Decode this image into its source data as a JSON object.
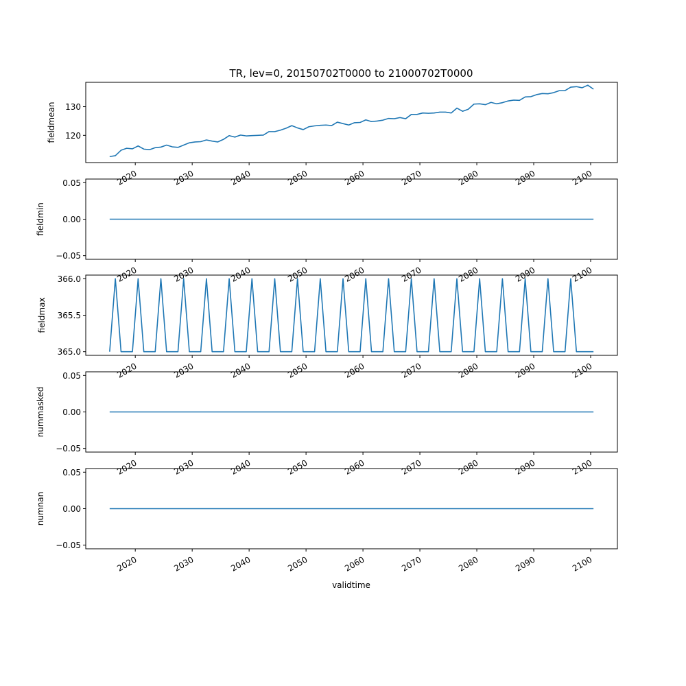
{
  "figure": {
    "title": "TR, lev=0, 20150702T0000 to 21000702T0000",
    "xlabel": "validtime",
    "line_color": "#1f77b4"
  },
  "chart_data": [
    {
      "type": "line",
      "ylabel": "fieldmean",
      "x": [
        2015.5,
        2016.5,
        2017.5,
        2018.5,
        2019.5,
        2020.5,
        2021.5,
        2022.5,
        2023.5,
        2024.5,
        2025.5,
        2026.5,
        2027.5,
        2028.5,
        2029.5,
        2030.5,
        2031.5,
        2032.5,
        2033.5,
        2034.5,
        2035.5,
        2036.5,
        2037.5,
        2038.5,
        2039.5,
        2040.5,
        2041.5,
        2042.5,
        2043.5,
        2044.5,
        2045.5,
        2046.5,
        2047.5,
        2048.5,
        2049.5,
        2050.5,
        2051.5,
        2052.5,
        2053.5,
        2054.5,
        2055.5,
        2056.5,
        2057.5,
        2058.5,
        2059.5,
        2060.5,
        2061.5,
        2062.5,
        2063.5,
        2064.5,
        2065.5,
        2066.5,
        2067.5,
        2068.5,
        2069.5,
        2070.5,
        2071.5,
        2072.5,
        2073.5,
        2074.5,
        2075.5,
        2076.5,
        2077.5,
        2078.5,
        2079.5,
        2080.5,
        2081.5,
        2082.5,
        2083.5,
        2084.5,
        2085.5,
        2086.5,
        2087.5,
        2088.5,
        2089.5,
        2090.5,
        2091.5,
        2092.5,
        2093.5,
        2094.5,
        2095.5,
        2096.5,
        2097.5,
        2098.5,
        2099.5,
        2100.5
      ],
      "values": [
        112.6,
        112.9,
        114.8,
        115.5,
        115.3,
        116.3,
        115.2,
        115.0,
        115.7,
        115.9,
        116.6,
        116.0,
        115.8,
        116.6,
        117.4,
        117.7,
        117.8,
        118.4,
        118.0,
        117.7,
        118.6,
        119.9,
        119.4,
        120.1,
        119.8,
        119.9,
        120.0,
        120.1,
        121.3,
        121.3,
        121.8,
        122.5,
        123.4,
        122.6,
        122.0,
        123.0,
        123.3,
        123.5,
        123.6,
        123.4,
        124.6,
        124.1,
        123.6,
        124.4,
        124.5,
        125.4,
        124.8,
        125.0,
        125.3,
        125.9,
        125.8,
        126.2,
        125.8,
        127.3,
        127.3,
        127.8,
        127.7,
        127.8,
        128.1,
        128.1,
        127.8,
        129.5,
        128.4,
        129.1,
        130.9,
        131.0,
        130.7,
        131.5,
        131.0,
        131.4,
        132.0,
        132.3,
        132.2,
        133.4,
        133.5,
        134.2,
        134.6,
        134.5,
        134.9,
        135.6,
        135.6,
        136.8,
        137.0,
        136.6,
        137.5,
        136.1
      ],
      "ylim": [
        110.5,
        138.5
      ],
      "yticks": [
        120,
        130
      ],
      "ytick_labels": [
        "120",
        "130"
      ]
    },
    {
      "type": "line",
      "ylabel": "fieldmin",
      "x_range": [
        2015.5,
        2100.5
      ],
      "constant": 0.0,
      "ylim": [
        -0.055,
        0.055
      ],
      "yticks": [
        0.05,
        0.0,
        -0.05
      ],
      "ytick_labels": [
        "0.05",
        "0.00",
        "−0.05"
      ]
    },
    {
      "type": "line",
      "ylabel": "fieldmax",
      "x_range": [
        2015.5,
        2100.5
      ],
      "base": 365.0,
      "peak": 366.0,
      "peak_x": [
        2016.5,
        2020.5,
        2024.5,
        2028.5,
        2032.5,
        2036.5,
        2040.5,
        2044.5,
        2048.5,
        2052.5,
        2056.5,
        2060.5,
        2064.5,
        2068.5,
        2072.5,
        2076.5,
        2080.5,
        2084.5,
        2088.5,
        2092.5,
        2096.5
      ],
      "ylim": [
        364.95,
        366.05
      ],
      "yticks": [
        366.0,
        365.5,
        365.0
      ],
      "ytick_labels": [
        "366.0",
        "365.5",
        "365.0"
      ]
    },
    {
      "type": "line",
      "ylabel": "nummasked",
      "x_range": [
        2015.5,
        2100.5
      ],
      "constant": 0.0,
      "ylim": [
        -0.055,
        0.055
      ],
      "yticks": [
        0.05,
        0.0,
        -0.05
      ],
      "ytick_labels": [
        "0.05",
        "0.00",
        "−0.05"
      ]
    },
    {
      "type": "line",
      "ylabel": "numnan",
      "x_range": [
        2015.5,
        2100.5
      ],
      "constant": 0.0,
      "ylim": [
        -0.055,
        0.055
      ],
      "yticks": [
        0.05,
        0.0,
        -0.05
      ],
      "ytick_labels": [
        "0.05",
        "0.00",
        "−0.05"
      ]
    }
  ],
  "x_axis": {
    "xlim": [
      2011.3,
      2104.7
    ],
    "ticks": [
      2020,
      2030,
      2040,
      2050,
      2060,
      2070,
      2080,
      2090,
      2100
    ],
    "tick_labels": [
      "2020",
      "2030",
      "2040",
      "2050",
      "2060",
      "2070",
      "2080",
      "2090",
      "2100"
    ],
    "tick_rotation_deg": 30
  }
}
